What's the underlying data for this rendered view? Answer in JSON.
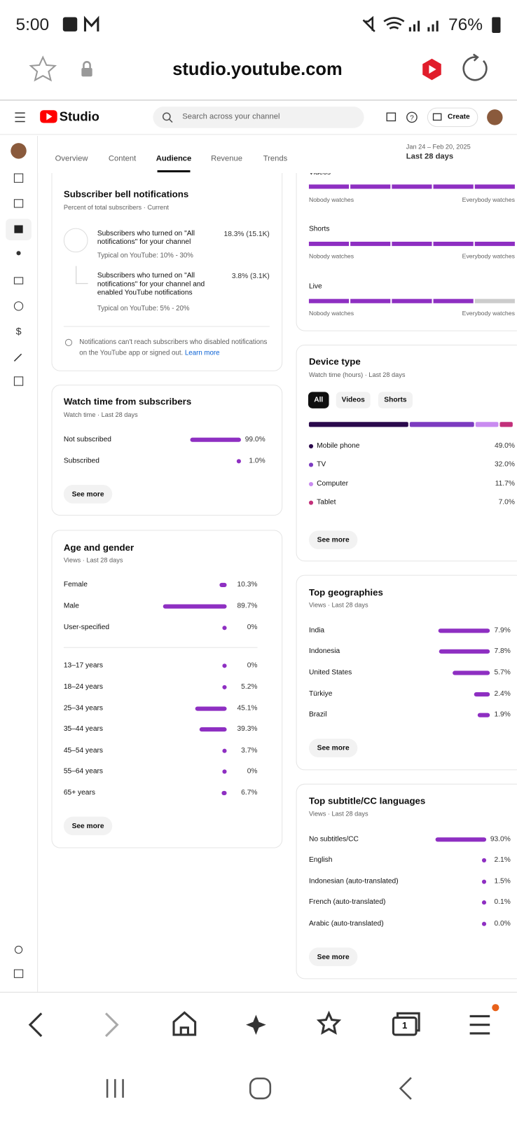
{
  "status_bar": {
    "time": "5:00",
    "battery": "76%"
  },
  "browser": {
    "url": "studio.youtube.com",
    "tab_count": "1"
  },
  "header": {
    "logo": "Studio",
    "search_placeholder": "Search across your channel",
    "create": "Create"
  },
  "tabs": {
    "items": [
      "Overview",
      "Content",
      "Audience",
      "Revenue",
      "Trends"
    ],
    "active_index": 2
  },
  "date_range": {
    "dates": "Jan 24 – Feb 20, 2025",
    "period": "Last 28 days"
  },
  "retention_card": {
    "sections": [
      {
        "label": "Videos",
        "filled": 5,
        "total": 5
      },
      {
        "label": "Shorts",
        "filled": 5,
        "total": 5
      },
      {
        "label": "Live",
        "filled": 4,
        "total": 5
      }
    ],
    "scale_labels": {
      "min": "Nobody watches",
      "max": "Everybody watches"
    }
  },
  "bell_card": {
    "title": "Subscriber bell notifications",
    "subtitle": "Percent of total subscribers · Current",
    "items": [
      {
        "text": "Subscribers who turned on \"All notifications\" for your channel",
        "typical": "Typical on YouTube: 10% - 30%",
        "value": "18.3% (15.1K)"
      },
      {
        "text": "Subscribers who turned on \"All notifications\" for your channel and enabled YouTube notifications",
        "typical": "Typical on YouTube: 5% - 20%",
        "value": "3.8% (3.1K)"
      }
    ],
    "note": "Notifications can't reach subscribers who disabled notifications on the YouTube app or signed out.",
    "link": "Learn more"
  },
  "watch_time_card": {
    "title": "Watch time from subscribers",
    "subtitle": "Watch time · Last 28 days",
    "rows": [
      {
        "label": "Not subscribed",
        "value": 99.0,
        "value_label": "99.0%"
      },
      {
        "label": "Subscribed",
        "value": 1.0,
        "value_label": "1.0%"
      }
    ],
    "button": "See more"
  },
  "age_gender_card": {
    "title": "Age and gender",
    "subtitle": "Views · Last 28 days",
    "gender": [
      {
        "label": "Female",
        "value": 10.3,
        "value_label": "10.3%"
      },
      {
        "label": "Male",
        "value": 89.7,
        "value_label": "89.7%"
      },
      {
        "label": "User-specified",
        "value": 0,
        "value_label": "0%"
      }
    ],
    "age": [
      {
        "label": "13–17 years",
        "value": 0,
        "value_label": "0%"
      },
      {
        "label": "18–24 years",
        "value": 5.2,
        "value_label": "5.2%"
      },
      {
        "label": "25–34 years",
        "value": 45.1,
        "value_label": "45.1%"
      },
      {
        "label": "35–44 years",
        "value": 39.3,
        "value_label": "39.3%"
      },
      {
        "label": "45–54 years",
        "value": 3.7,
        "value_label": "3.7%"
      },
      {
        "label": "55–64 years",
        "value": 0,
        "value_label": "0%"
      },
      {
        "label": "65+ years",
        "value": 6.7,
        "value_label": "6.7%"
      }
    ],
    "button": "See more"
  },
  "device_card": {
    "title": "Device type",
    "subtitle": "Watch time (hours) · Last 28 days",
    "chips": [
      "All",
      "Videos",
      "Shorts"
    ],
    "selected_chip": 0,
    "rows": [
      {
        "label": "Mobile phone",
        "value": 49.0,
        "value_label": "49.0%",
        "color": "#2b0a4d"
      },
      {
        "label": "TV",
        "value": 32.0,
        "value_label": "32.0%",
        "color": "#7c3bc0"
      },
      {
        "label": "Computer",
        "value": 11.7,
        "value_label": "11.7%",
        "color": "#c98bf0"
      },
      {
        "label": "Tablet",
        "value": 7.0,
        "value_label": "7.0%",
        "color": "#c2307a"
      }
    ],
    "button": "See more"
  },
  "geo_card": {
    "title": "Top geographies",
    "subtitle": "Views · Last 28 days",
    "rows": [
      {
        "label": "India",
        "value": 7.9,
        "value_label": "7.9%"
      },
      {
        "label": "Indonesia",
        "value": 7.8,
        "value_label": "7.8%"
      },
      {
        "label": "United States",
        "value": 5.7,
        "value_label": "5.7%"
      },
      {
        "label": "Türkiye",
        "value": 2.4,
        "value_label": "2.4%"
      },
      {
        "label": "Brazil",
        "value": 1.9,
        "value_label": "1.9%"
      }
    ],
    "button": "See more"
  },
  "lang_card": {
    "title": "Top subtitle/CC languages",
    "subtitle": "Views · Last 28 days",
    "rows": [
      {
        "label": "No subtitles/CC",
        "value": 93.0,
        "value_label": "93.0%"
      },
      {
        "label": "English",
        "value": 2.1,
        "value_label": "2.1%"
      },
      {
        "label": "Indonesian (auto-translated)",
        "value": 1.5,
        "value_label": "1.5%"
      },
      {
        "label": "French (auto-translated)",
        "value": 0.1,
        "value_label": "0.1%"
      },
      {
        "label": "Arabic (auto-translated)",
        "value": 0.0,
        "value_label": "0.0%"
      }
    ],
    "button": "See more"
  }
}
